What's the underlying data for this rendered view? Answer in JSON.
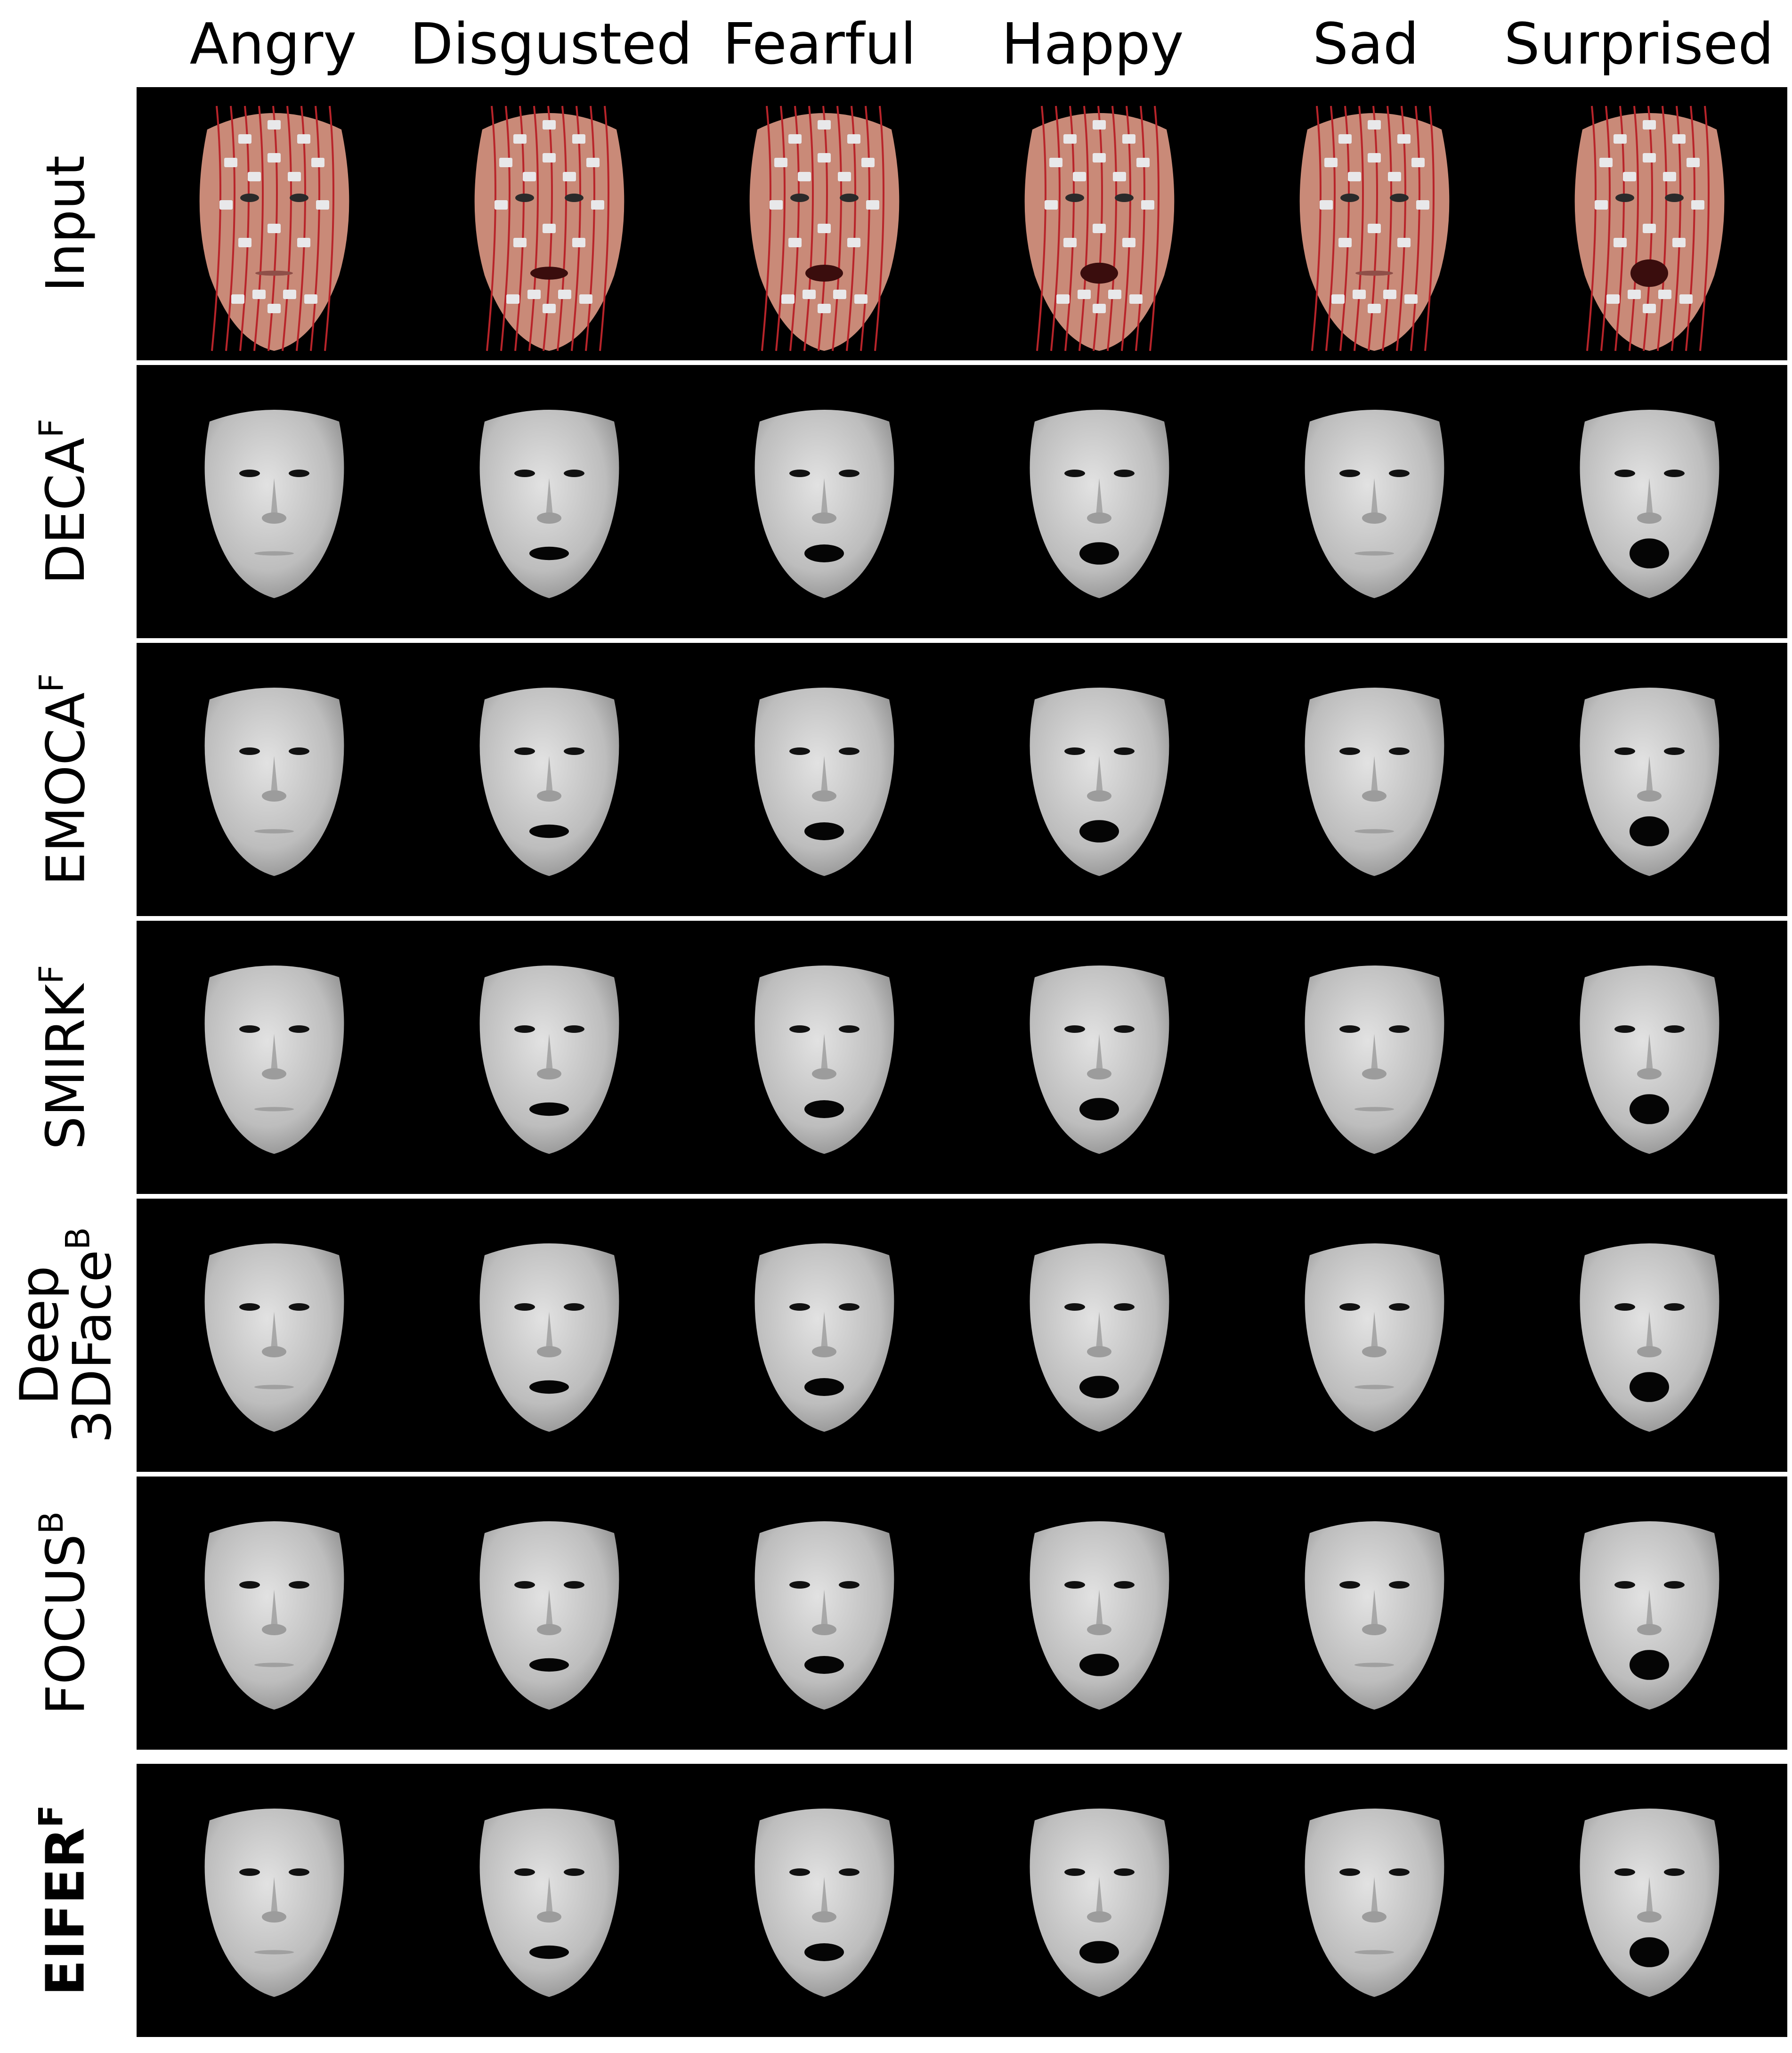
{
  "columns": [
    "Angry",
    "Disgusted",
    "Fearful",
    "Happy",
    "Sad",
    "Surprised"
  ],
  "rows": [
    {
      "id": "input",
      "label": "Input",
      "sup": "",
      "kind": "photo",
      "bold": false
    },
    {
      "id": "deca",
      "label": "DECA",
      "sup": "F",
      "kind": "mesh",
      "bold": false
    },
    {
      "id": "emoca",
      "label": "EMOCA",
      "sup": "F",
      "kind": "mesh",
      "bold": false
    },
    {
      "id": "smirk",
      "label": "SMIRK",
      "sup": "F",
      "kind": "mesh",
      "bold": false
    },
    {
      "id": "deep3dface",
      "label": "Deep",
      "label2": "3DFace",
      "sup": "B",
      "kind": "mesh",
      "bold": false
    },
    {
      "id": "focus",
      "label": "FOCUS",
      "sup": "B",
      "kind": "mesh",
      "bold": false
    },
    {
      "id": "eifer",
      "label": "EIFER",
      "sup": "F",
      "kind": "mesh",
      "bold": true
    }
  ],
  "colors": {
    "background": "#ffffff",
    "panel": "#000000",
    "mesh": "#bdbdbd",
    "skin": "#c98a78",
    "electrode": "#e8e8ea",
    "wire": "#b8242a"
  },
  "mouth_open": [
    0.05,
    0.35,
    0.5,
    0.65,
    0.05,
    0.9
  ]
}
